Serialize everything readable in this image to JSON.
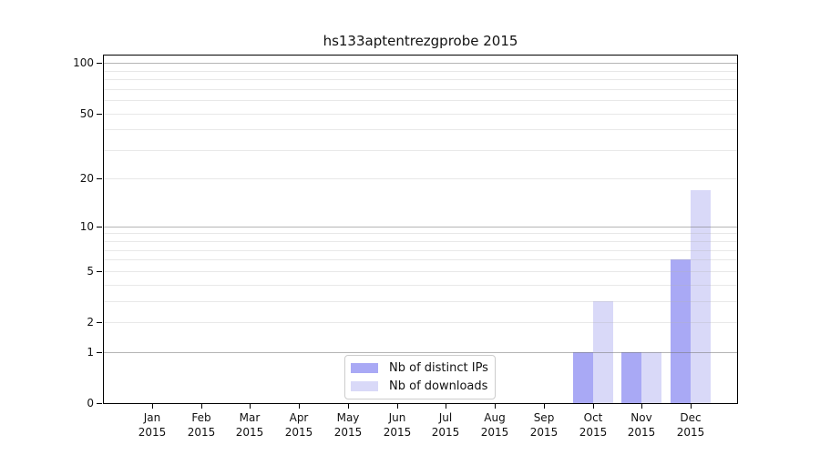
{
  "chart_data": {
    "type": "bar",
    "title": "hs133aptentrezgprobe 2015",
    "categories": [
      "Jan",
      "Feb",
      "Mar",
      "Apr",
      "May",
      "Jun",
      "Jul",
      "Aug",
      "Sep",
      "Oct",
      "Nov",
      "Dec"
    ],
    "category_year": "2015",
    "series": [
      {
        "name": "Nb of distinct IPs",
        "color": "#a9a9f5",
        "values": [
          0,
          0,
          0,
          0,
          0,
          0,
          0,
          0,
          0,
          1,
          1,
          6
        ]
      },
      {
        "name": "Nb of downloads",
        "color": "#d9d9f8",
        "values": [
          0,
          0,
          0,
          0,
          0,
          0,
          0,
          0,
          0,
          3,
          1,
          17
        ]
      }
    ],
    "y_ticks": [
      0,
      1,
      2,
      5,
      10,
      20,
      50,
      100
    ],
    "y_minor_gridlines": [
      2,
      3,
      4,
      5,
      6,
      7,
      8,
      9,
      20,
      30,
      40,
      50,
      60,
      70,
      80,
      90
    ],
    "y_major_gridlines": [
      1,
      10,
      100
    ],
    "y_scale": "log1p",
    "ylim": [
      0,
      113
    ],
    "grid": true,
    "legend_position": "bottom-center",
    "xlabel": "",
    "ylabel": ""
  }
}
